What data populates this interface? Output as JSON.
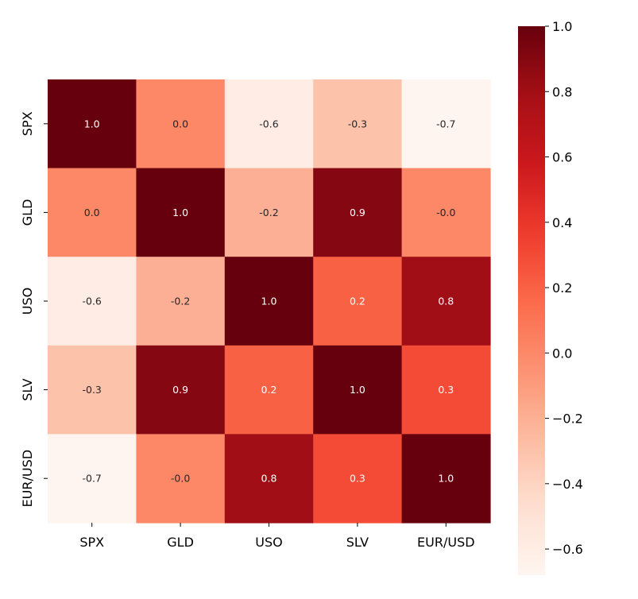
{
  "chart_data": {
    "type": "heatmap",
    "title": "",
    "xlabel": "",
    "ylabel": "",
    "x_categories": [
      "SPX",
      "GLD",
      "USO",
      "SLV",
      "EUR/USD"
    ],
    "y_categories": [
      "SPX",
      "GLD",
      "USO",
      "SLV",
      "EUR/USD"
    ],
    "values": [
      [
        1.0,
        0.0,
        -0.6,
        -0.3,
        -0.7
      ],
      [
        0.0,
        1.0,
        -0.2,
        0.9,
        -0.0
      ],
      [
        -0.6,
        -0.2,
        1.0,
        0.2,
        0.8
      ],
      [
        -0.3,
        0.9,
        0.2,
        1.0,
        0.3
      ],
      [
        -0.7,
        -0.0,
        0.8,
        0.3,
        1.0
      ]
    ],
    "annotations": [
      [
        "1.0",
        "0.0",
        "-0.6",
        "-0.3",
        "-0.7"
      ],
      [
        "0.0",
        "1.0",
        "-0.2",
        "0.9",
        "-0.0"
      ],
      [
        "-0.6",
        "-0.2",
        "1.0",
        "0.2",
        "0.8"
      ],
      [
        "-0.3",
        "0.9",
        "0.2",
        "1.0",
        "0.3"
      ],
      [
        "-0.7",
        "-0.0",
        "0.8",
        "0.3",
        "1.0"
      ]
    ],
    "colormap": "Reds",
    "colorbar": {
      "vmin": -0.68,
      "vmax": 1.0,
      "ticks": [
        1.0,
        0.8,
        0.6,
        0.4,
        0.2,
        0.0,
        -0.2,
        -0.4,
        -0.6
      ],
      "tick_labels": [
        "1.0",
        "0.8",
        "0.6",
        "0.4",
        "0.2",
        "0.0",
        "−0.2",
        "−0.4",
        "−0.6"
      ],
      "placement": "right"
    },
    "colors": {
      "low": "#fff5f0",
      "high": "#67000d",
      "text_light": "#ffffff",
      "text_dark": "#262626"
    }
  }
}
